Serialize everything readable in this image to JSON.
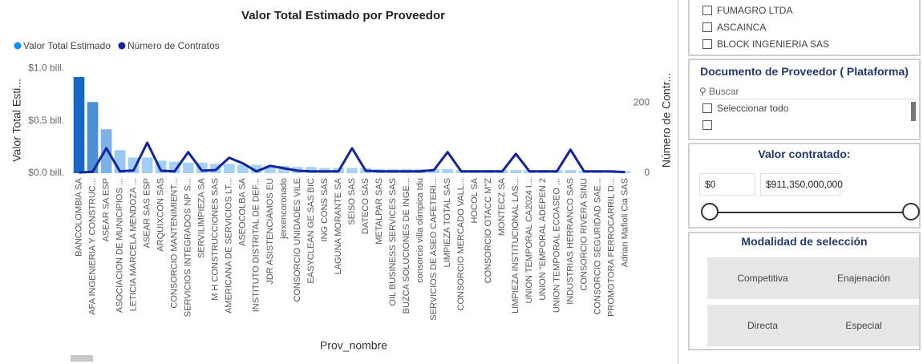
{
  "chart_data": {
    "type": "bar",
    "title": "Valor Total Estimado por Proveedor",
    "x_label": "Prov_nombre",
    "y_label": "Valor Total Esti...",
    "y2_label": "Número de Contr...",
    "categories": [
      "BANCOLOMBIA SA",
      "AFA INGENIERIA Y CONSTRUC...",
      "ASEAR SA ESP",
      "ASOCIACION DE MUNICIPIOS ...",
      "LETICIA MARCELA MENDOZA ...",
      "ASEAR SAS ESP",
      "ARQUIXCON SAS",
      "CONSORCIO MANTENIMIENT...",
      "SERVICIOS INTEGRADOS NP S...",
      "SERVILIMPIEZA SA",
      "M H CONSTRUCCIONES SAS",
      "AMERICANA DE SERVICIOS LT...",
      "ASEOCOLBA SA",
      "INSTITUTO DISTRITAL DE DEF...",
      "JDR ASISTENCIAMOS EU",
      "jerxencoronado",
      "CONSORCIO UNIDADES VILE",
      "EASYCLEAN GE SAS BIC",
      "ING CONS SAS",
      "LAGUNA MORANTE SA",
      "SEISO SAS",
      "DATECO SAS",
      "METALPAR SAS",
      "OIL BUSINESS SERVICES SAS",
      "BUZCA SOLUCIONES DE INGE...",
      "consorcio villa olimpica tdu",
      "SERVICIOS DE ASEO CAFETERI...",
      "LIMPIEZA TOTAL SAS",
      "CONSORCIO MERCADO VALL...",
      "HOCOL SA",
      "CONSORCIO OTACC M\"Z",
      "MONTECZ SA",
      "LIMPIEZA INSTITUCIONAL LAS...",
      "UNION TEMPORAL CA2024 I...",
      "UNION \"EMPORAL ADEPEN 2",
      "UNION TEMPORAL ECOASEO ...",
      "INDUSTRIAS HERRANCO SAS",
      "CONSORCIO RIVERA SINU",
      "CONSORCIO SEGURIDAD SAE...",
      "PROMOTORA FERROCARRIL D...",
      "Adrian Mafioli Cia SAS"
    ],
    "series": [
      {
        "name": "Valor Total Estimado",
        "color": "#118dff",
        "type": "bar",
        "color_scale": [
          "#a9d4f7",
          "#1667c8"
        ],
        "values": [
          0.92,
          0.68,
          0.42,
          0.22,
          0.15,
          0.15,
          0.12,
          0.11,
          0.1,
          0.1,
          0.09,
          0.09,
          0.08,
          0.08,
          0.07,
          0.07,
          0.06,
          0.06,
          0.05,
          0.05,
          0.05,
          0.05,
          0.04,
          0.04,
          0.04,
          0.04,
          0.04,
          0.04,
          0.03,
          0.03,
          0.03,
          0.03,
          0.03,
          0.03,
          0.03,
          0.03,
          0.03,
          0.02,
          0.02,
          0.02,
          0.02
        ]
      },
      {
        "name": "Número de Contratos",
        "color": "#12239e",
        "type": "line",
        "axis": "y2",
        "values": [
          2,
          4,
          71,
          5,
          8,
          87,
          7,
          5,
          60,
          7,
          9,
          44,
          28,
          5,
          21,
          14,
          7,
          5,
          5,
          5,
          71,
          7,
          5,
          5,
          5,
          5,
          9,
          60,
          5,
          5,
          5,
          5,
          55,
          5,
          5,
          5,
          67,
          5,
          5,
          5,
          3
        ]
      }
    ],
    "ylim": [
      0,
      1.05
    ],
    "yticks": [
      {
        "value": 0,
        "label": "$0.0 bill."
      },
      {
        "value": 0.5,
        "label": "$0.5 bill."
      },
      {
        "value": 1.0,
        "label": "$1.0 bill."
      }
    ],
    "y2lim": [
      0,
      313
    ],
    "y2ticks": [
      0,
      200
    ],
    "grid": false,
    "legend": "top-left"
  },
  "panels": {
    "filter_list": {
      "items": [
        "FUMAGRO LTDA",
        "ASCAINCA",
        "BLOCK INGENIERIA SAS"
      ]
    },
    "documento": {
      "title": "Documento de Proveedor ( Plataforma)",
      "search": "Buscar",
      "select_all": "Seleccionar todo"
    },
    "valor": {
      "title": "Valor contratado:",
      "min": "$0",
      "max": "$911,350,000,000"
    },
    "modalidad": {
      "title": "Modalidad de selección",
      "buttons": [
        "Competitiva",
        "Enajenación",
        "Directa",
        "Especial"
      ]
    }
  }
}
